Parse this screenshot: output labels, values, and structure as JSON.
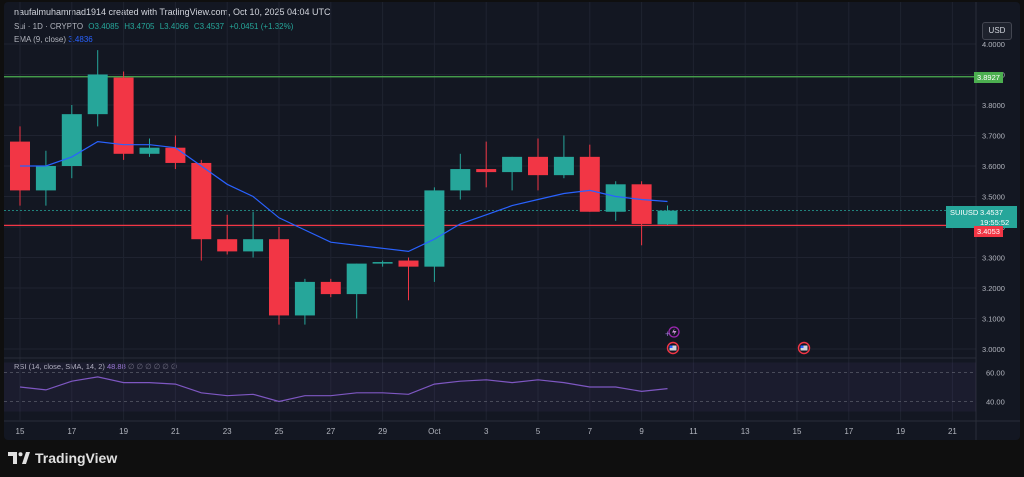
{
  "header": {
    "text": "naufalmuhammad1914 created with TradingView.com, Oct 10, 2025 04:04 UTC"
  },
  "symbol": {
    "title": "Sui · 1D · CRYPTO",
    "o": "O3.4085",
    "h": "H3.4705",
    "l": "L3.4066",
    "c": "C3.4537",
    "chg": "+0.0451 (+1.32%)"
  },
  "ema": {
    "label": "EMA (9, close)",
    "value": "3.4836"
  },
  "rsi": {
    "label": "RSI (14, close, SMA, 14, 2)",
    "value": "48.88",
    "extras": "∅ ∅ ∅ ∅ ∅ ∅"
  },
  "currency_button": "USD",
  "price_labels": {
    "resistance": "3.8927",
    "ticker": "SUIUSD",
    "last": "3.4537",
    "countdown": "19:55:52",
    "support": "3.4053"
  },
  "footer": {
    "brand": "TradingView"
  },
  "colors": {
    "up": "#26a69a",
    "down": "#f23645",
    "ema": "#2962ff",
    "rsi": "#7e57c2",
    "resistance": "#4caf50",
    "support": "#f23645"
  },
  "chart_data": {
    "type": "candlestick",
    "price_axis": {
      "min": 3.0,
      "max": 4.0,
      "ticks": [
        "4.0000",
        "3.9000",
        "3.8000",
        "3.7000",
        "3.6000",
        "3.5000",
        "3.4000",
        "3.3000",
        "3.2000",
        "3.1000",
        "3.0000"
      ],
      "tick_values": [
        4.0,
        3.9,
        3.8,
        3.7,
        3.6,
        3.5,
        3.4,
        3.3,
        3.2,
        3.1,
        3.0
      ]
    },
    "date_ticks": [
      {
        "label": "15",
        "i": 0
      },
      {
        "label": "17",
        "i": 2
      },
      {
        "label": "19",
        "i": 4
      },
      {
        "label": "21",
        "i": 6
      },
      {
        "label": "23",
        "i": 8
      },
      {
        "label": "25",
        "i": 10
      },
      {
        "label": "27",
        "i": 12
      },
      {
        "label": "29",
        "i": 14
      },
      {
        "label": "Oct",
        "i": 16
      },
      {
        "label": "3",
        "i": 18
      },
      {
        "label": "5",
        "i": 20
      },
      {
        "label": "7",
        "i": 22
      },
      {
        "label": "9",
        "i": 24
      },
      {
        "label": "11",
        "i": 26
      },
      {
        "label": "13",
        "i": 28
      },
      {
        "label": "15",
        "i": 30
      },
      {
        "label": "17",
        "i": 32
      },
      {
        "label": "19",
        "i": 34
      },
      {
        "label": "21",
        "i": 36
      }
    ],
    "candles": [
      {
        "date": "Sep 15",
        "o": 3.68,
        "h": 3.73,
        "l": 3.47,
        "c": 3.52
      },
      {
        "date": "Sep 16",
        "o": 3.52,
        "h": 3.65,
        "l": 3.47,
        "c": 3.6
      },
      {
        "date": "Sep 17",
        "o": 3.6,
        "h": 3.8,
        "l": 3.56,
        "c": 3.77
      },
      {
        "date": "Sep 18",
        "o": 3.77,
        "h": 3.98,
        "l": 3.73,
        "c": 3.9
      },
      {
        "date": "Sep 19",
        "o": 3.89,
        "h": 3.91,
        "l": 3.62,
        "c": 3.64
      },
      {
        "date": "Sep 20",
        "o": 3.64,
        "h": 3.69,
        "l": 3.63,
        "c": 3.66
      },
      {
        "date": "Sep 21",
        "o": 3.66,
        "h": 3.7,
        "l": 3.59,
        "c": 3.61
      },
      {
        "date": "Sep 22",
        "o": 3.61,
        "h": 3.62,
        "l": 3.29,
        "c": 3.36
      },
      {
        "date": "Sep 23",
        "o": 3.36,
        "h": 3.44,
        "l": 3.31,
        "c": 3.32
      },
      {
        "date": "Sep 24",
        "o": 3.32,
        "h": 3.45,
        "l": 3.3,
        "c": 3.36
      },
      {
        "date": "Sep 25",
        "o": 3.36,
        "h": 3.4,
        "l": 3.08,
        "c": 3.11
      },
      {
        "date": "Sep 26",
        "o": 3.11,
        "h": 3.23,
        "l": 3.08,
        "c": 3.22
      },
      {
        "date": "Sep 27",
        "o": 3.22,
        "h": 3.23,
        "l": 3.17,
        "c": 3.18
      },
      {
        "date": "Sep 28",
        "o": 3.18,
        "h": 3.28,
        "l": 3.1,
        "c": 3.28
      },
      {
        "date": "Sep 29",
        "o": 3.28,
        "h": 3.29,
        "l": 3.27,
        "c": 3.285
      },
      {
        "date": "Sep 30",
        "o": 3.29,
        "h": 3.3,
        "l": 3.16,
        "c": 3.27
      },
      {
        "date": "Oct 1",
        "o": 3.27,
        "h": 3.53,
        "l": 3.22,
        "c": 3.52
      },
      {
        "date": "Oct 2",
        "o": 3.52,
        "h": 3.64,
        "l": 3.49,
        "c": 3.59
      },
      {
        "date": "Oct 3",
        "o": 3.59,
        "h": 3.68,
        "l": 3.53,
        "c": 3.58
      },
      {
        "date": "Oct 4",
        "o": 3.58,
        "h": 3.63,
        "l": 3.52,
        "c": 3.63
      },
      {
        "date": "Oct 5",
        "o": 3.63,
        "h": 3.69,
        "l": 3.52,
        "c": 3.57
      },
      {
        "date": "Oct 6",
        "o": 3.57,
        "h": 3.7,
        "l": 3.56,
        "c": 3.63
      },
      {
        "date": "Oct 7",
        "o": 3.63,
        "h": 3.67,
        "l": 3.45,
        "c": 3.45
      },
      {
        "date": "Oct 8",
        "o": 3.45,
        "h": 3.55,
        "l": 3.42,
        "c": 3.54
      },
      {
        "date": "Oct 9",
        "o": 3.54,
        "h": 3.55,
        "l": 3.34,
        "c": 3.41
      },
      {
        "date": "Oct 10",
        "o": 3.4085,
        "h": 3.4705,
        "l": 3.4066,
        "c": 3.4537
      }
    ],
    "ema": [
      3.6,
      3.6,
      3.63,
      3.68,
      3.67,
      3.67,
      3.66,
      3.6,
      3.54,
      3.5,
      3.43,
      3.39,
      3.35,
      3.34,
      3.33,
      3.32,
      3.36,
      3.41,
      3.44,
      3.47,
      3.49,
      3.51,
      3.52,
      3.5,
      3.49,
      3.4836
    ],
    "rsi": {
      "ticks": [
        "60.00",
        "40.00"
      ],
      "tick_values": [
        60,
        40
      ],
      "range": [
        30,
        70
      ],
      "values": [
        50,
        48,
        54,
        57,
        53,
        53,
        52,
        46,
        44,
        45,
        40,
        44,
        44,
        46,
        46,
        45,
        52,
        54,
        55,
        53,
        55,
        53,
        50,
        50,
        47,
        48.88
      ]
    },
    "resistance": 3.8927,
    "support": 3.4053
  }
}
